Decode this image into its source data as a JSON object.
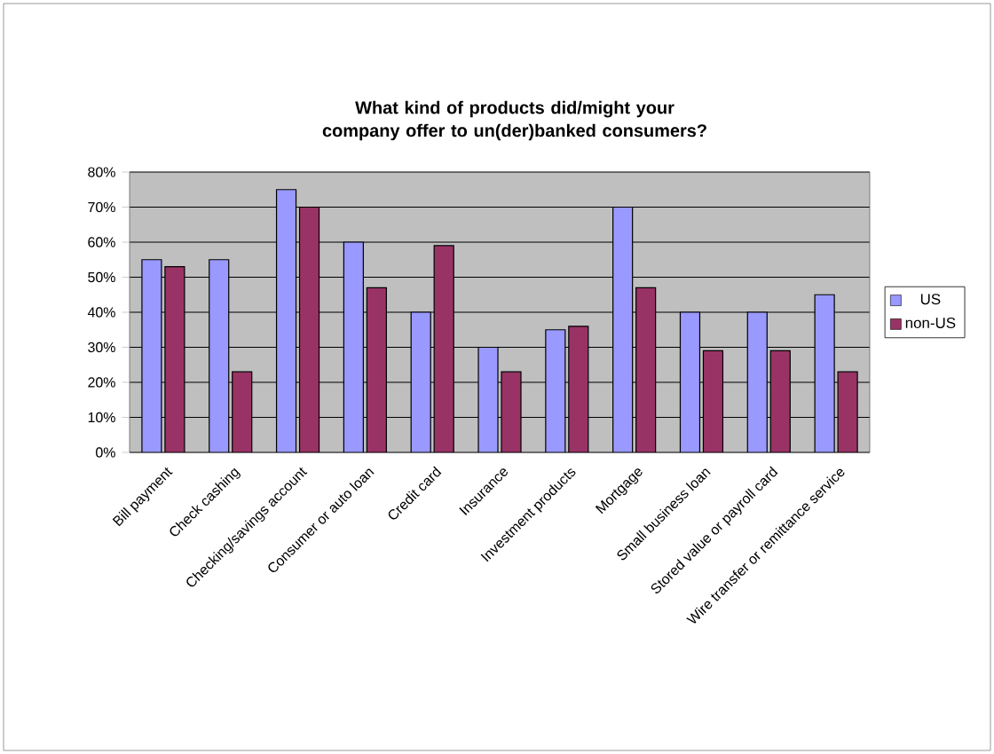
{
  "chart_data": {
    "type": "bar",
    "title": "What kind of products did/might your company offer to un(der)banked consumers?",
    "categories": [
      "Bill payment",
      "Check cashing",
      "Checking/savings account",
      "Consumer or auto loan",
      "Credit card",
      "Insurance",
      "Investment products",
      "Mortgage",
      "Small business loan",
      "Stored value or payroll card",
      "Wire transfer or remittance service"
    ],
    "series": [
      {
        "name": "US",
        "color": "#9999ff",
        "values": [
          55,
          55,
          75,
          60,
          40,
          30,
          35,
          70,
          40,
          40,
          45
        ]
      },
      {
        "name": "non-US",
        "color": "#993366",
        "values": [
          53,
          23,
          70,
          47,
          59,
          23,
          36,
          47,
          29,
          29,
          23
        ]
      }
    ],
    "ylim": [
      0,
      80
    ],
    "yticks": [
      {
        "value": 0,
        "label": "0%"
      },
      {
        "value": 10,
        "label": "10%"
      },
      {
        "value": 20,
        "label": "20%"
      },
      {
        "value": 30,
        "label": "30%"
      },
      {
        "value": 40,
        "label": "40%"
      },
      {
        "value": 50,
        "label": "50%"
      },
      {
        "value": 60,
        "label": "60%"
      },
      {
        "value": 70,
        "label": "70%"
      },
      {
        "value": 80,
        "label": "80%"
      }
    ],
    "grid": "y",
    "legend": "right"
  }
}
